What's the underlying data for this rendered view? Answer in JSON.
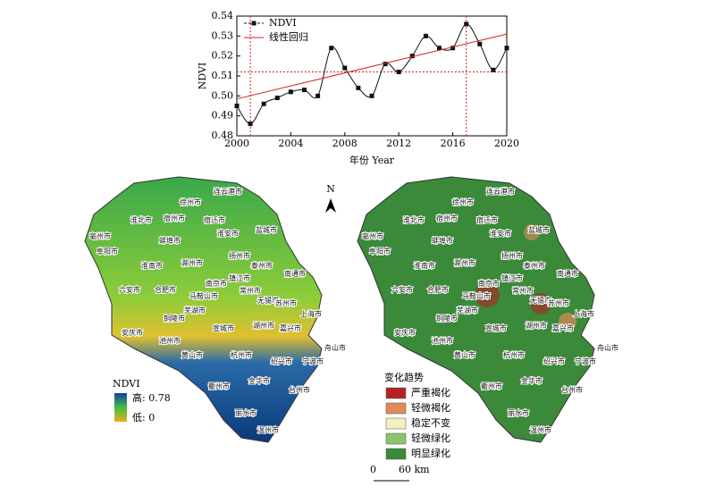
{
  "chart_data": {
    "type": "line",
    "xlabel": "年份  Year",
    "ylabel": "NDVI",
    "xlim": [
      2000,
      2020
    ],
    "xticks": [
      2000,
      2004,
      2008,
      2012,
      2016,
      2020
    ],
    "ylim": [
      0.48,
      0.54
    ],
    "yticks": [
      0.48,
      0.49,
      {
        "value": 0.5,
        "label": "0.50"
      },
      0.51,
      0.52,
      0.53,
      0.54
    ],
    "hlines": [
      0.512
    ],
    "vlines": [
      2001,
      2017
    ],
    "ref_color": "#d62020",
    "series": [
      {
        "name": "NDVI",
        "color": "#111111",
        "marker": "square",
        "x": [
          2000,
          2001,
          2002,
          2003,
          2004,
          2005,
          2006,
          2007,
          2008,
          2009,
          2010,
          2011,
          2012,
          2013,
          2014,
          2015,
          2016,
          2017,
          2018,
          2019,
          2020
        ],
        "values": [
          0.495,
          0.486,
          0.496,
          0.499,
          0.502,
          0.503,
          0.5,
          0.524,
          0.514,
          0.504,
          0.5,
          0.516,
          0.512,
          0.52,
          0.53,
          0.524,
          0.524,
          0.536,
          0.526,
          0.513,
          0.524
        ]
      },
      {
        "name": "线性回归",
        "color": "#d62020",
        "x": [
          2000,
          2020
        ],
        "values": [
          0.4985,
          0.531
        ]
      }
    ]
  },
  "maps": {
    "north": "N",
    "cities": [
      "连云港市",
      "徐州市",
      "淮北市",
      "宿州市",
      "宿迁市",
      "淮安市",
      "亳州市",
      "蚌埠市",
      "盐城市",
      "阜阳市",
      "淮南市",
      "滁州市",
      "扬州市",
      "泰州市",
      "南通市",
      "六安市",
      "合肥市",
      "马鞍山市",
      "南京市",
      "镇江市",
      "常州市",
      "无锡市",
      "苏州市",
      "上海市",
      "芜湖市",
      "铜陵市",
      "宣城市",
      "湖州市",
      "嘉兴市",
      "安庆市",
      "池州市",
      "黄山市",
      "杭州市",
      "绍兴市",
      "宁波市",
      "舟山市",
      "衢州市",
      "金华市",
      "台州市",
      "丽水市",
      "温州市"
    ],
    "ndvi_legend": {
      "title": "NDVI",
      "high": "高: 0.78",
      "low": "低: 0"
    },
    "trend_legend": {
      "title": "变化趋势",
      "items": [
        {
          "label": "严重褐化",
          "color": "#b22222"
        },
        {
          "label": "轻微褐化",
          "color": "#e08a5a"
        },
        {
          "label": "稳定不变",
          "color": "#f5f0c0"
        },
        {
          "label": "轻微绿化",
          "color": "#8cc46a"
        },
        {
          "label": "明显绿化",
          "color": "#3a8a3a"
        }
      ]
    },
    "scale": {
      "zero": "0",
      "length": "60 km"
    }
  }
}
